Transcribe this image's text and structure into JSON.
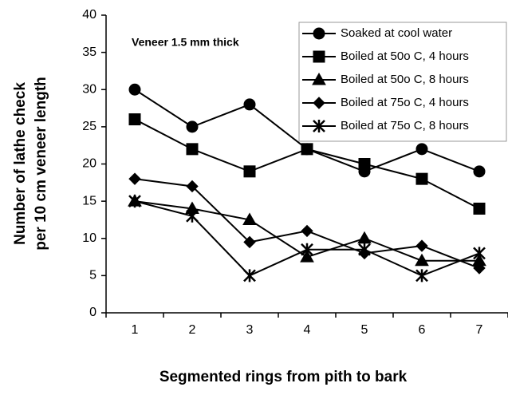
{
  "chart_data": {
    "type": "line",
    "annotation": "Veneer 1.5 mm thick",
    "x_label": "Segmented rings from pith to bark",
    "y_label": [
      "Number of lathe check",
      "per 10 cm veneer length"
    ],
    "categories": [
      "1",
      "2",
      "3",
      "4",
      "5",
      "6",
      "7"
    ],
    "series": [
      {
        "name": "Soaked at cool water",
        "color": "#000000",
        "marker": "circle",
        "values": [
          30,
          25,
          28,
          22,
          19,
          22,
          19
        ]
      },
      {
        "name": "Boiled at 50o C, 4 hours",
        "color": "#000000",
        "marker": "square",
        "values": [
          26,
          22,
          19,
          22,
          20,
          18,
          14
        ]
      },
      {
        "name": "Boiled at 50o C, 8 hours",
        "color": "#000000",
        "marker": "triangle",
        "values": [
          15,
          14,
          12.5,
          7.5,
          10,
          7,
          7
        ]
      },
      {
        "name": "Boiled at 75o C, 4 hours",
        "color": "#000000",
        "marker": "diamond",
        "values": [
          18,
          17,
          9.5,
          11,
          8,
          9,
          6
        ]
      },
      {
        "name": "Boiled at 75o C, 8 hours",
        "color": "#000000",
        "marker": "star",
        "values": [
          15,
          13,
          5,
          8.5,
          8.5,
          5,
          8
        ]
      }
    ],
    "ylim": [
      0,
      40
    ],
    "yticks": [
      0,
      5,
      10,
      15,
      20,
      25,
      30,
      35,
      40
    ],
    "legend": "upper right",
    "grid": false
  }
}
